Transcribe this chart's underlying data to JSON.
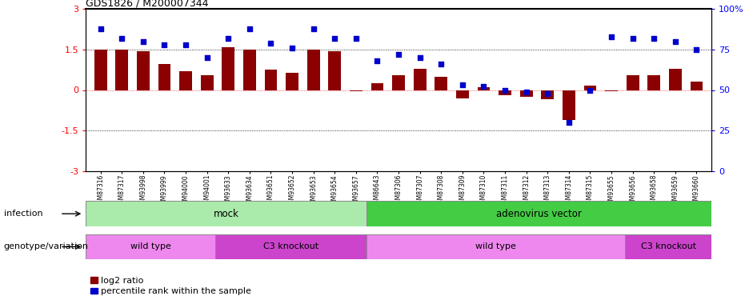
{
  "title": "GDS1826 / M200007344",
  "samples": [
    "GSM87316",
    "GSM87317",
    "GSM93998",
    "GSM93999",
    "GSM94000",
    "GSM94001",
    "GSM93633",
    "GSM93634",
    "GSM93651",
    "GSM93652",
    "GSM93653",
    "GSM93654",
    "GSM93657",
    "GSM86643",
    "GSM87306",
    "GSM87307",
    "GSM87308",
    "GSM87309",
    "GSM87310",
    "GSM87311",
    "GSM87312",
    "GSM87313",
    "GSM87314",
    "GSM87315",
    "GSM93655",
    "GSM93656",
    "GSM93658",
    "GSM93659",
    "GSM93660"
  ],
  "log2_ratio": [
    1.5,
    1.5,
    1.45,
    0.95,
    0.7,
    0.55,
    1.6,
    1.5,
    0.75,
    0.65,
    1.5,
    1.45,
    -0.05,
    0.25,
    0.55,
    0.8,
    0.5,
    -0.3,
    0.1,
    -0.2,
    -0.25,
    -0.35,
    -1.1,
    0.15,
    -0.05,
    0.55,
    0.55,
    0.8,
    0.3
  ],
  "percentile_rank": [
    88,
    82,
    80,
    78,
    78,
    70,
    82,
    88,
    79,
    76,
    88,
    82,
    82,
    68,
    72,
    70,
    66,
    53,
    52,
    50,
    49,
    48,
    30,
    50,
    83,
    82,
    82,
    80,
    75
  ],
  "bar_color": "#8B0000",
  "dot_color": "#0000CC",
  "ylim_left": [
    -3,
    3
  ],
  "ylim_right": [
    0,
    100
  ],
  "yticks_left": [
    -3,
    -1.5,
    0,
    1.5,
    3
  ],
  "yticks_right": [
    0,
    25,
    50,
    75,
    100
  ],
  "ytick_labels_left": [
    "-3",
    "-1.5",
    "0",
    "1.5",
    "3"
  ],
  "ytick_labels_right": [
    "0",
    "25",
    "50",
    "75",
    "100%"
  ],
  "hline_values": [
    1.5,
    -1.5
  ],
  "hline0_value": 0,
  "mock_count": 13,
  "adeno_count": 16,
  "infection_mock_label": "mock",
  "infection_adeno_label": "adenovirus vector",
  "infection_mock_color": "#AAEAAA",
  "infection_adeno_color": "#44CC44",
  "wt1_count": 6,
  "c3ko1_count": 7,
  "wt2_count": 12,
  "c3ko2_count": 4,
  "genotype_wt_label": "wild type",
  "genotype_c3ko_label": "C3 knockout",
  "genotype_wt_color": "#EE88EE",
  "genotype_c3ko_color": "#CC44CC",
  "legend_bar_label": "log2 ratio",
  "legend_dot_label": "percentile rank within the sample",
  "row1_label": "infection",
  "row2_label": "genotype/variation",
  "background_color": "#FFFFFF",
  "bar_width": 0.6
}
